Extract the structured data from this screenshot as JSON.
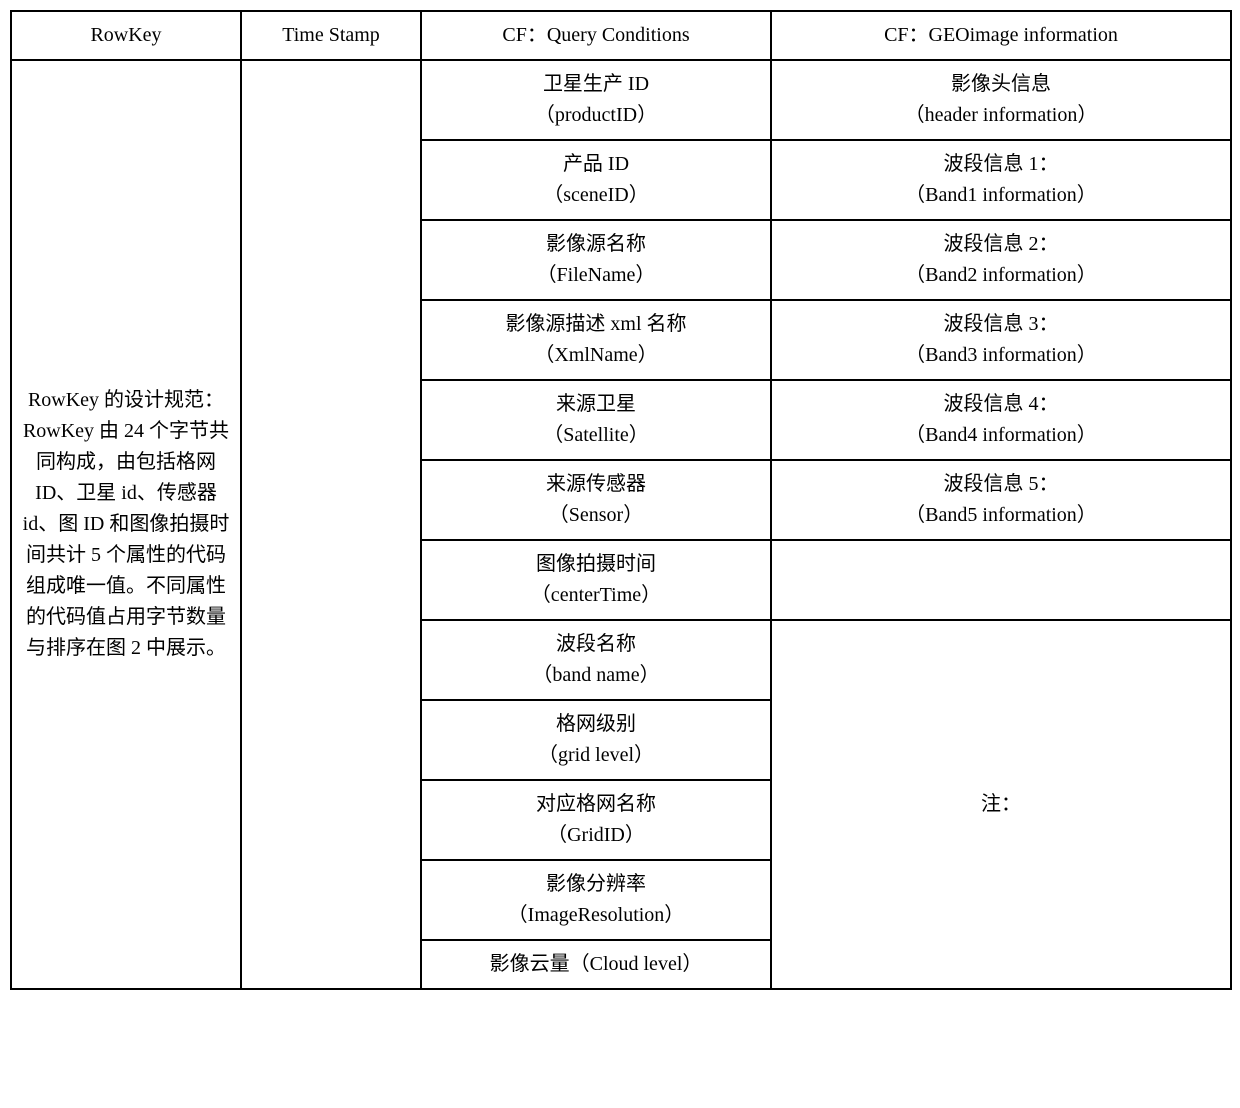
{
  "table": {
    "headers": {
      "rowkey": "RowKey",
      "timestamp": "Time Stamp",
      "qc": "CF：Query Conditions",
      "geo": "CF：GEOimage information"
    },
    "rowkey_desc": "RowKey 的设计规范：RowKey 由 24 个字节共同构成，由包括格网 ID、卫星 id、传感器 id、图 ID 和图像拍摄时间共计 5 个属性的代码组成唯一值。不同属性的代码值占用字节数量与排序在图 2 中展示。",
    "qc_rows": [
      {
        "cn": "卫星生产 ID",
        "en": "（productID）"
      },
      {
        "cn": "产品 ID",
        "en": "（sceneID）"
      },
      {
        "cn": "影像源名称",
        "en": "（FileName）"
      },
      {
        "cn": "影像源描述 xml 名称",
        "en": "（XmlName）"
      },
      {
        "cn": "来源卫星",
        "en": "（Satellite）"
      },
      {
        "cn": "来源传感器",
        "en": "（Sensor）"
      },
      {
        "cn": "图像拍摄时间",
        "en": "（centerTime）"
      },
      {
        "cn": "波段名称",
        "en": "（band name）"
      },
      {
        "cn": "格网级别",
        "en": "（grid level）"
      },
      {
        "cn": "对应格网名称",
        "en": "（GridID）"
      },
      {
        "cn": "影像分辨率",
        "en": "（ImageResolution）"
      },
      {
        "single": "影像云量（Cloud level）"
      }
    ],
    "geo_rows": [
      {
        "cn": "影像头信息",
        "en": "（header information）"
      },
      {
        "cn": "波段信息 1：",
        "en": "（Band1 information）"
      },
      {
        "cn": "波段信息 2：",
        "en": "（Band2 information）"
      },
      {
        "cn": "波段信息 3：",
        "en": "（Band3 information）"
      },
      {
        "cn": "波段信息 4：",
        "en": "（Band4 information）"
      },
      {
        "cn": "波段信息 5：",
        "en": "（Band5 information）"
      }
    ],
    "geo_note": "注：",
    "colors": {
      "border": "#000000",
      "background": "#ffffff",
      "text": "#000000"
    },
    "font_size_pt": 15
  }
}
